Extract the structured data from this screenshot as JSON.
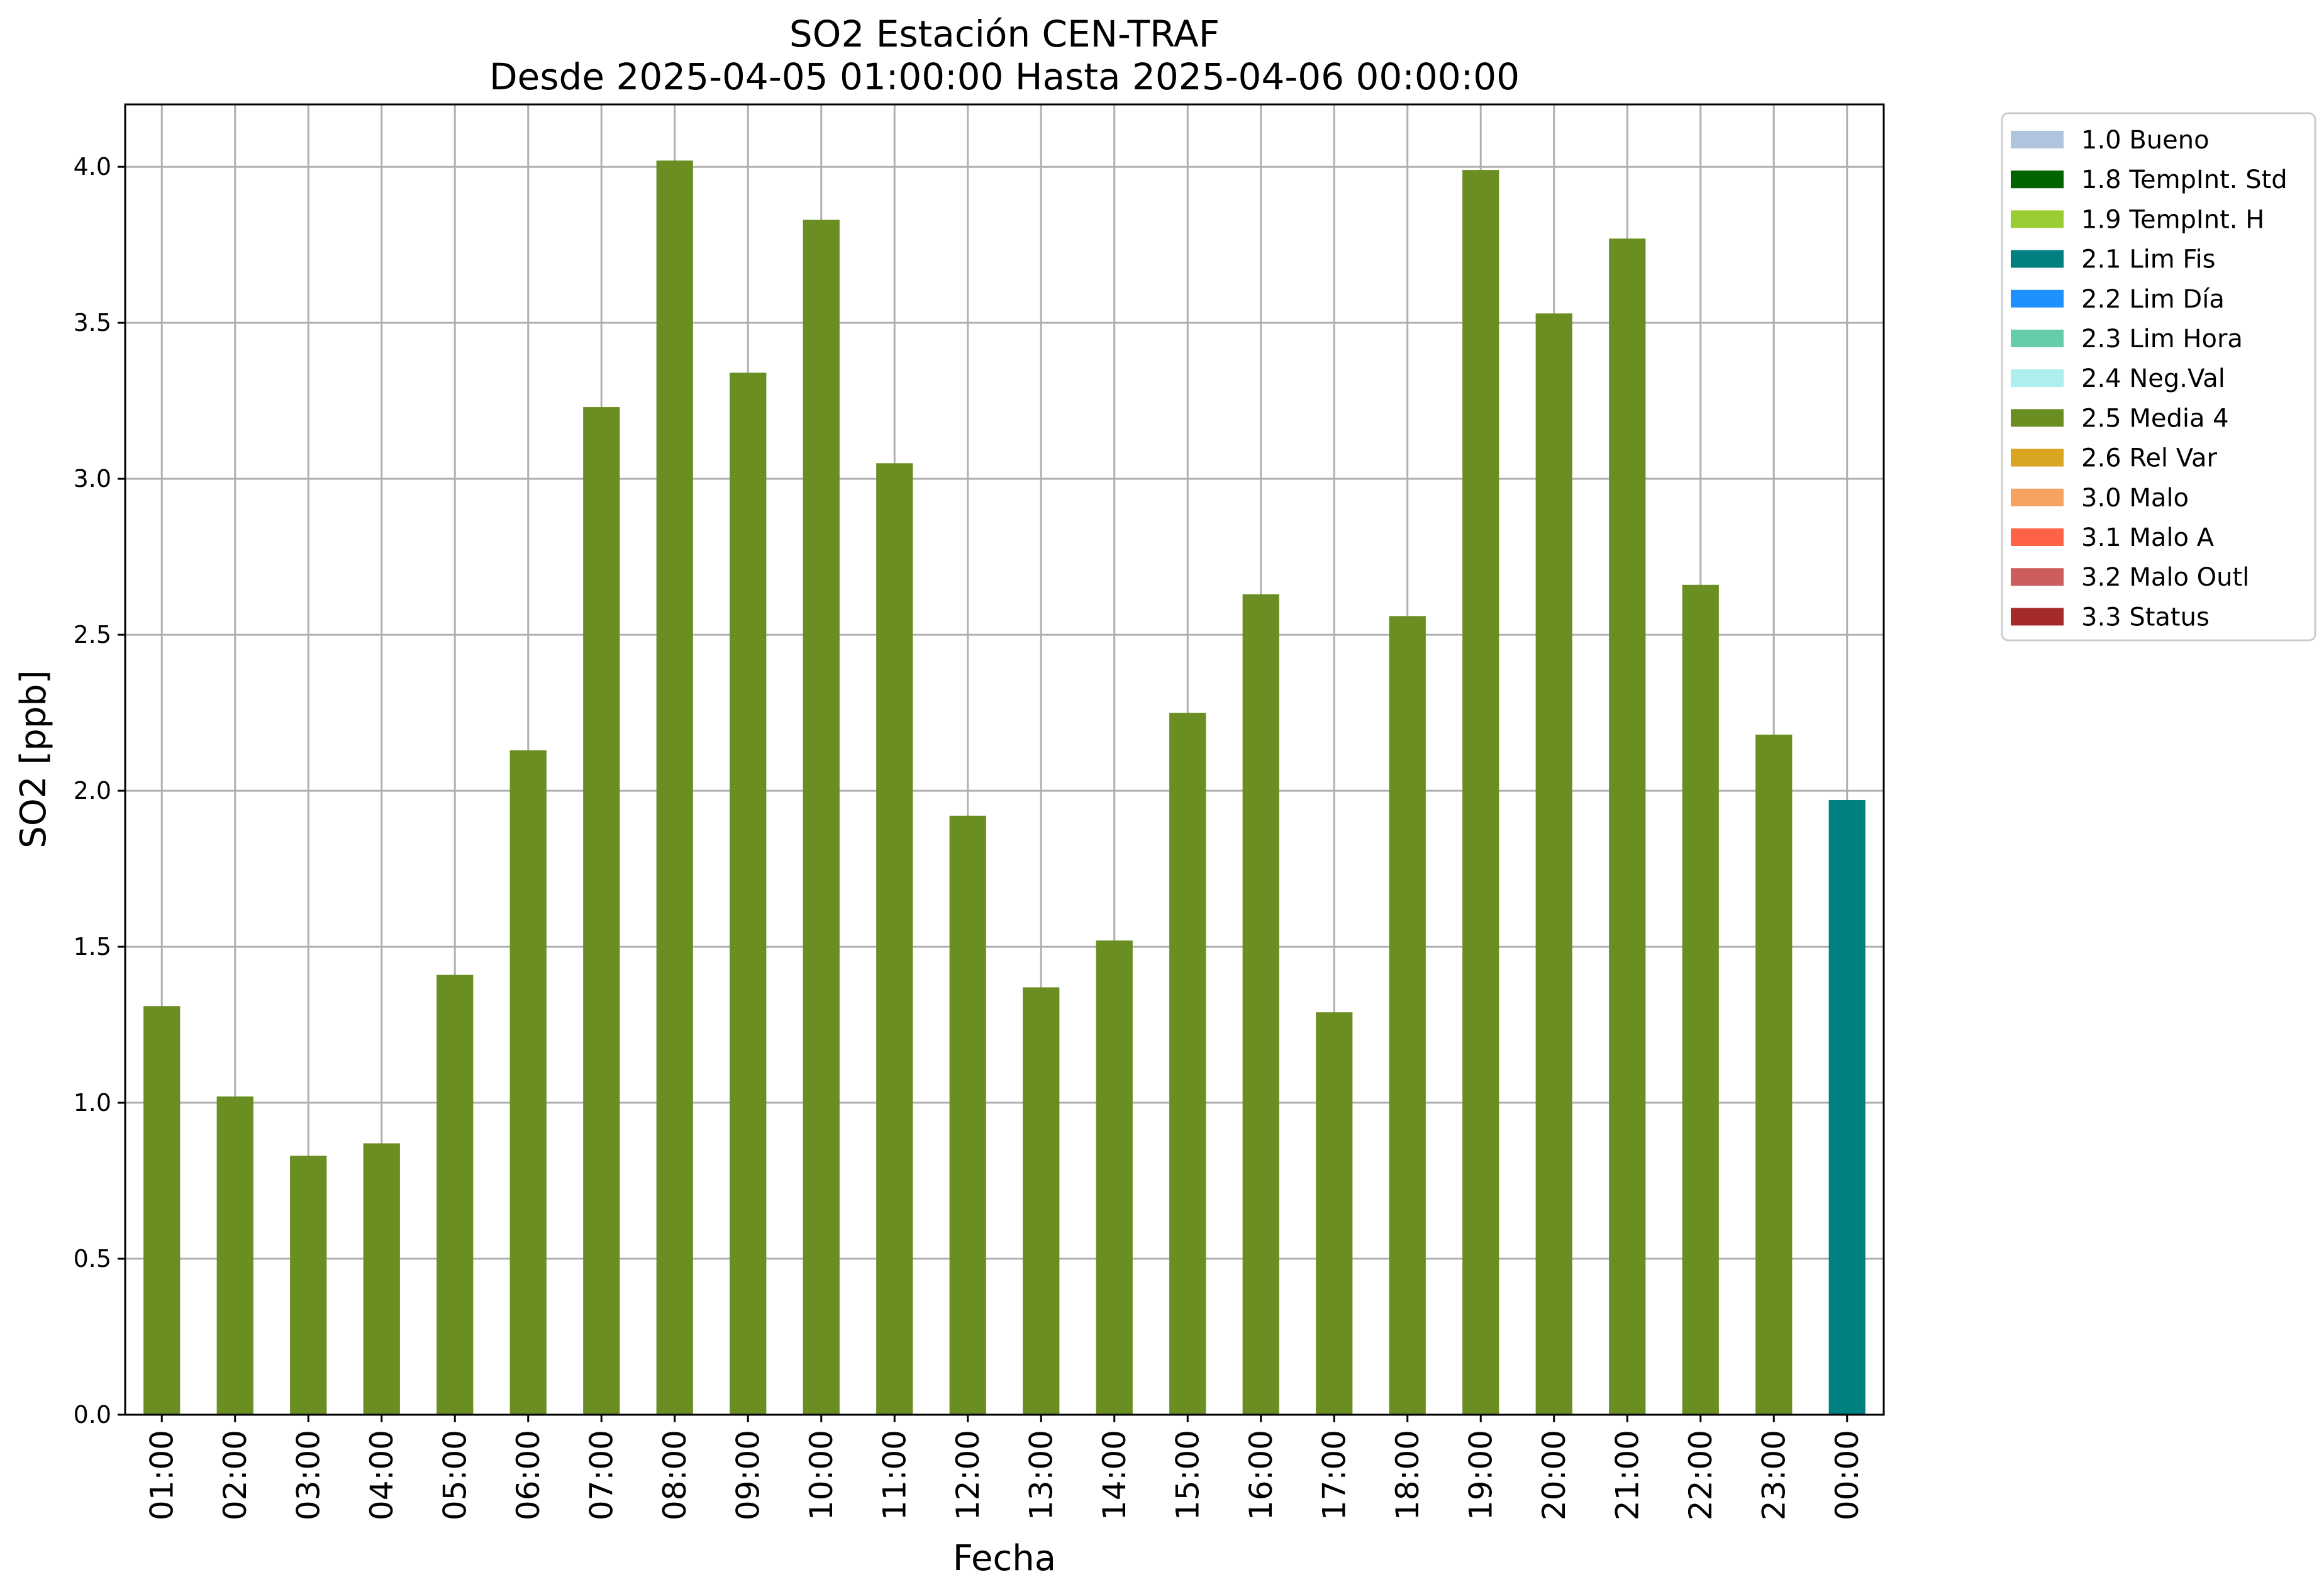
{
  "chart_data": {
    "type": "bar",
    "title": "SO2 Estación CEN-TRAF",
    "subtitle": "Desde 2025-04-05 01:00:00 Hasta 2025-04-06 00:00:00",
    "xlabel": "Fecha",
    "ylabel": "SO2 [ppb]",
    "ylim": [
      0,
      4.2
    ],
    "yticks": [
      "0.0",
      "0.5",
      "1.0",
      "1.5",
      "2.0",
      "2.5",
      "3.0",
      "3.5",
      "4.0"
    ],
    "grid": true,
    "legend_position": "outside-top-right",
    "categories": [
      "01:00",
      "02:00",
      "03:00",
      "04:00",
      "05:00",
      "06:00",
      "07:00",
      "08:00",
      "09:00",
      "10:00",
      "11:00",
      "12:00",
      "13:00",
      "14:00",
      "15:00",
      "16:00",
      "17:00",
      "18:00",
      "19:00",
      "20:00",
      "21:00",
      "22:00",
      "23:00",
      "00:00"
    ],
    "values": [
      1.31,
      1.02,
      0.83,
      0.87,
      1.41,
      2.13,
      3.23,
      4.02,
      3.34,
      3.83,
      3.05,
      1.92,
      1.37,
      1.52,
      2.25,
      2.63,
      1.29,
      2.56,
      3.99,
      3.53,
      3.77,
      2.66,
      2.18,
      1.97
    ],
    "flags": [
      "2.5 Media 4",
      "2.5 Media 4",
      "2.5 Media 4",
      "2.5 Media 4",
      "2.5 Media 4",
      "2.5 Media 4",
      "2.5 Media 4",
      "2.5 Media 4",
      "2.5 Media 4",
      "2.5 Media 4",
      "2.5 Media 4",
      "2.5 Media 4",
      "2.5 Media 4",
      "2.5 Media 4",
      "2.5 Media 4",
      "2.5 Media 4",
      "2.5 Media 4",
      "2.5 Media 4",
      "2.5 Media 4",
      "2.5 Media 4",
      "2.5 Media 4",
      "2.5 Media 4",
      "2.5 Media 4",
      "2.1 Lim Fis"
    ],
    "legend": [
      {
        "label": "1.0 Bueno",
        "color": "#b0c4de"
      },
      {
        "label": "1.8 TempInt. Std",
        "color": "#006400"
      },
      {
        "label": "1.9 TempInt. H",
        "color": "#9acd32"
      },
      {
        "label": "2.1 Lim Fis",
        "color": "#008080"
      },
      {
        "label": "2.2 Lim Día",
        "color": "#1e90ff"
      },
      {
        "label": "2.3 Lim Hora",
        "color": "#66cdaa"
      },
      {
        "label": "2.4 Neg.Val",
        "color": "#afeeee"
      },
      {
        "label": "2.5 Media 4",
        "color": "#6b8e23"
      },
      {
        "label": "2.6 Rel Var",
        "color": "#daa520"
      },
      {
        "label": "3.0 Malo",
        "color": "#f4a460"
      },
      {
        "label": "3.1 Malo A",
        "color": "#ff6347"
      },
      {
        "label": "3.2 Malo Outl",
        "color": "#cd5c5c"
      },
      {
        "label": "3.3 Status",
        "color": "#a52a2a"
      }
    ]
  }
}
